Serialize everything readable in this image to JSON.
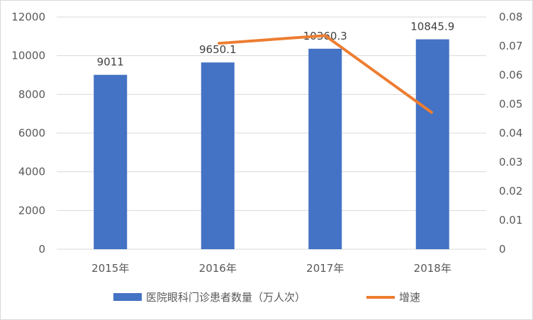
{
  "chart_data": {
    "type": "bar",
    "title": "",
    "categories": [
      "2015年",
      "2016年",
      "2017年",
      "2018年"
    ],
    "series": [
      {
        "name": "医院眼科门诊患者数量（万人次）",
        "type": "bar",
        "axis": "left",
        "color": "#4472C4",
        "values": [
          9011,
          9650.1,
          10360.3,
          10845.9
        ],
        "labels": [
          "9011",
          "9650.1",
          "10360.3",
          "10845.9"
        ]
      },
      {
        "name": "增速",
        "type": "line",
        "axis": "right",
        "color": "#ED7D31",
        "values": [
          null,
          0.0709,
          0.0736,
          0.0469
        ]
      }
    ],
    "left_axis": {
      "ylim": [
        0,
        12000
      ],
      "ticks": [
        "0",
        "2000",
        "4000",
        "6000",
        "8000",
        "10000",
        "12000"
      ]
    },
    "right_axis": {
      "ylim": [
        0,
        0.08
      ],
      "ticks": [
        "0",
        "0.01",
        "0.02",
        "0.03",
        "0.04",
        "0.05",
        "0.06",
        "0.07",
        "0.08"
      ]
    },
    "grid": true,
    "legend_position": "bottom"
  }
}
